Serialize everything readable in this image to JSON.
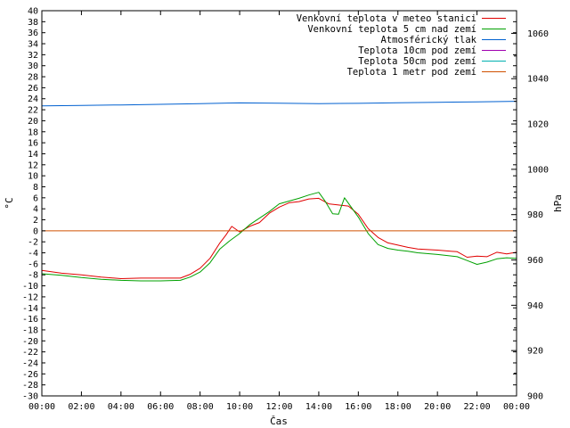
{
  "chart_data": {
    "type": "line",
    "title": "",
    "xlabel": "Čas",
    "ylabel_left": "°C",
    "ylabel_right": "hPa",
    "x_ticks": [
      "00:00",
      "02:00",
      "04:00",
      "06:00",
      "08:00",
      "10:00",
      "12:00",
      "14:00",
      "16:00",
      "18:00",
      "20:00",
      "22:00",
      "00:00"
    ],
    "x_range_hours": [
      0,
      24
    ],
    "ylim_left": [
      -30,
      40
    ],
    "y_left_step": 2,
    "ylim_right": [
      900,
      1070
    ],
    "y_right_ticks": [
      900,
      920,
      940,
      960,
      980,
      1000,
      1020,
      1040,
      1060
    ],
    "grid": false,
    "legend_position": "top-right",
    "series": [
      {
        "name": "Venkovní teplota v meteo stanici",
        "color": "#e00000",
        "axis": "left",
        "x": [
          0,
          1,
          2,
          3,
          4,
          5,
          6,
          7,
          7.5,
          8,
          8.5,
          9,
          9.3,
          9.6,
          10,
          10.5,
          11,
          11.5,
          12,
          12.5,
          13,
          13.5,
          14,
          14.5,
          15,
          15.5,
          16,
          16.5,
          17,
          17.5,
          18,
          18.5,
          19,
          20,
          21,
          21.5,
          22,
          22.5,
          23,
          23.5,
          24
        ],
        "values": [
          -7.2,
          -7.7,
          -8.0,
          -8.4,
          -8.7,
          -8.6,
          -8.6,
          -8.6,
          -7.9,
          -6.8,
          -5.0,
          -2.2,
          -0.8,
          0.8,
          -0.2,
          0.8,
          1.5,
          3.2,
          4.3,
          5.1,
          5.3,
          5.8,
          5.9,
          4.9,
          4.7,
          4.5,
          3.0,
          0.4,
          -1.2,
          -2.2,
          -2.6,
          -3.0,
          -3.3,
          -3.5,
          -3.8,
          -4.8,
          -4.6,
          -4.7,
          -3.9,
          -4.2,
          -3.9
        ]
      },
      {
        "name": "Venkovní teplota 5 cm nad zemí",
        "color": "#00a000",
        "axis": "left",
        "x": [
          0,
          1,
          2,
          3,
          4,
          5,
          6,
          7,
          7.5,
          8,
          8.5,
          9,
          9.5,
          10,
          10.5,
          11,
          11.5,
          12,
          12.5,
          13,
          13.5,
          14,
          14.3,
          14.7,
          15,
          15.3,
          15.7,
          16,
          16.5,
          17,
          17.5,
          18,
          18.5,
          19,
          20,
          21,
          21.5,
          22,
          22.5,
          23,
          23.5,
          24
        ],
        "values": [
          -7.8,
          -8.1,
          -8.5,
          -8.8,
          -9.0,
          -9.1,
          -9.1,
          -9.0,
          -8.4,
          -7.5,
          -5.8,
          -3.3,
          -1.8,
          -0.5,
          1.1,
          2.3,
          3.5,
          4.9,
          5.4,
          5.9,
          6.5,
          7.0,
          5.5,
          3.1,
          3.0,
          6.0,
          4.0,
          2.5,
          -0.5,
          -2.5,
          -3.2,
          -3.5,
          -3.7,
          -4.0,
          -4.3,
          -4.7,
          -5.4,
          -6.1,
          -5.7,
          -5.1,
          -4.9,
          -5.0
        ]
      },
      {
        "name": "Atmosférický tlak",
        "color": "#0060d0",
        "axis": "right",
        "x": [
          0,
          2,
          4,
          6,
          8,
          10,
          12,
          14,
          16,
          18,
          20,
          22,
          24
        ],
        "values": [
          1028.0,
          1028.2,
          1028.4,
          1028.7,
          1029.0,
          1029.3,
          1029.2,
          1029.0,
          1029.1,
          1029.4,
          1029.6,
          1029.8,
          1030.0
        ]
      },
      {
        "name": "Teplota 10cm pod zemí",
        "color": "#a000b0",
        "axis": "left",
        "x": [],
        "values": []
      },
      {
        "name": "Teplota 50cm pod zemí",
        "color": "#00b0b0",
        "axis": "left",
        "x": [],
        "values": []
      },
      {
        "name": "Teplota 1 metr pod zemí",
        "color": "#d05000",
        "axis": "left",
        "x": [
          0,
          24
        ],
        "values": [
          0,
          0
        ]
      }
    ]
  }
}
